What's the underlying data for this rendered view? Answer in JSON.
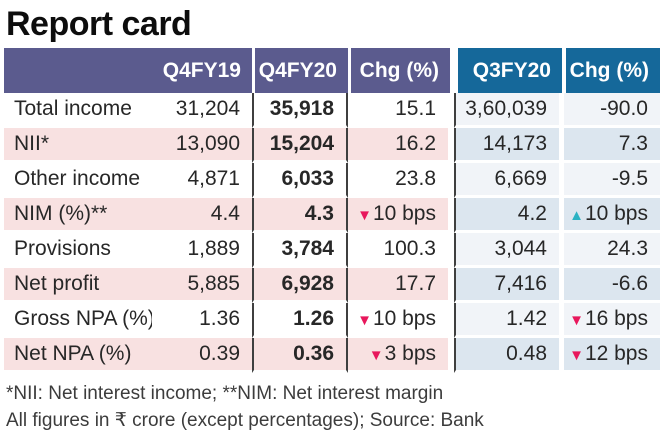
{
  "title": "Report card",
  "table": {
    "header": {
      "q4fy19": "Q4FY19",
      "q4fy20": "Q4FY20",
      "chg1": "Chg (%)",
      "q3fy20": "Q3FY20",
      "chg2": "Chg (%)"
    },
    "rows": [
      {
        "label": "Total income",
        "q4fy19": "31,204",
        "q4fy20": "35,918",
        "chg1": "15.1",
        "chg1_icon": "",
        "q3fy20": "3,60,039",
        "chg2": "-90.0",
        "chg2_icon": ""
      },
      {
        "label": "NII*",
        "q4fy19": "13,090",
        "q4fy20": "15,204",
        "chg1": "16.2",
        "chg1_icon": "",
        "q3fy20": "14,173",
        "chg2": "7.3",
        "chg2_icon": ""
      },
      {
        "label": "Other income",
        "q4fy19": "4,871",
        "q4fy20": "6,033",
        "chg1": "23.8",
        "chg1_icon": "",
        "q3fy20": "6,669",
        "chg2": "-9.5",
        "chg2_icon": ""
      },
      {
        "label": "NIM (%)**",
        "q4fy19": "4.4",
        "q4fy20": "4.3",
        "chg1": "10 bps",
        "chg1_icon": "down-triangle",
        "q3fy20": "4.2",
        "chg2": "10 bps",
        "chg2_icon": "up-triangle"
      },
      {
        "label": "Provisions",
        "q4fy19": "1,889",
        "q4fy20": "3,784",
        "chg1": "100.3",
        "chg1_icon": "",
        "q3fy20": "3,044",
        "chg2": "24.3",
        "chg2_icon": ""
      },
      {
        "label": "Net profit",
        "q4fy19": "5,885",
        "q4fy20": "6,928",
        "chg1": "17.7",
        "chg1_icon": "",
        "q3fy20": "7,416",
        "chg2": "-6.6",
        "chg2_icon": ""
      },
      {
        "label": "Gross NPA (%)",
        "q4fy19": "1.36",
        "q4fy20": "1.26",
        "chg1": "10 bps",
        "chg1_icon": "down-triangle",
        "q3fy20": "1.42",
        "chg2": "16 bps",
        "chg2_icon": "down-triangle"
      },
      {
        "label": "Net NPA (%)",
        "q4fy19": "0.39",
        "q4fy20": "0.36",
        "chg1": "3 bps",
        "chg1_icon": "down-triangle",
        "q3fy20": "0.48",
        "chg2": "12 bps",
        "chg2_icon": "down-triangle"
      }
    ]
  },
  "footnotes": {
    "line1": "*NII: Net interest income; **NIM: Net interest margin",
    "line2": "All figures in ₹ crore (except percentages); Source: Bank"
  },
  "colors": {
    "header_purple": "#5b5b8e",
    "header_teal": "#15689a",
    "row_pink": "#f8e1e1",
    "row_blue": "#dce6ef",
    "row_blue_light": "#f1f4f8",
    "column_divider": "#3f3f3f",
    "down_triangle": "#e8175c",
    "up_triangle": "#2bb2c3"
  }
}
